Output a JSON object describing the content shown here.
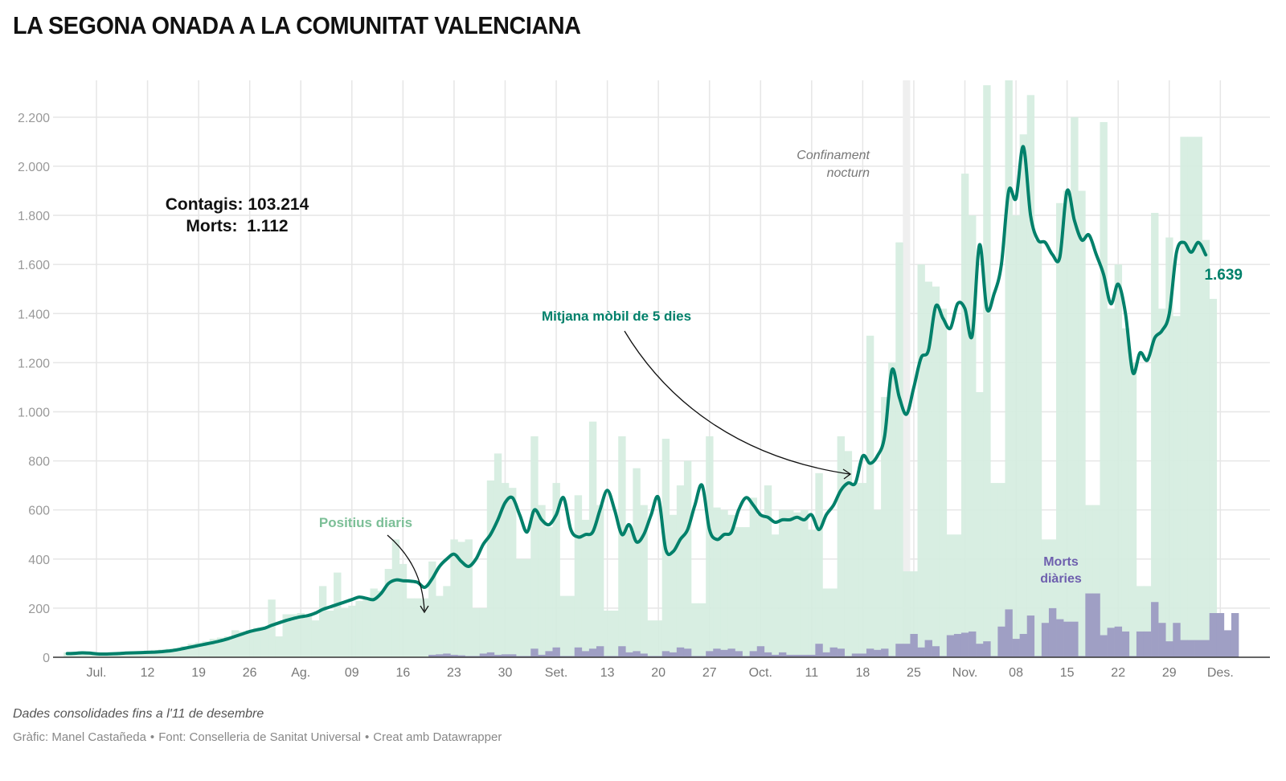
{
  "title": "LA SEGONA ONADA A LA COMUNITAT VALENCIANA",
  "footer": {
    "note": "Dades consolidades fins a l'11 de desembre",
    "credit_graphic": "Gràfic: Manel Castañeda",
    "credit_source": "Font: Conselleria de Sanitat Universal",
    "credit_tool": "Creat amb Datawrapper",
    "separator": "•"
  },
  "colors": {
    "positives_bar": "#d5ede0",
    "moving_avg_line": "#00806a",
    "deaths_bar": "#9f9fc4",
    "positives_label": "#7cbf97",
    "deaths_label": "#6e5fae",
    "curfew_band": "#efefef",
    "grid": "#e6e6e6",
    "axis_text": "#999999"
  },
  "chart_data": {
    "type": "bar",
    "title": "LA SEGONA ONADA A LA COMUNITAT VALENCIANA",
    "xlabel": "",
    "ylabel": "",
    "ylim": [
      0,
      2350
    ],
    "grid": true,
    "start_date": "2020-07-01",
    "end_date": "2020-12-11",
    "yticks": [
      0,
      200,
      400,
      600,
      800,
      1000,
      1200,
      1400,
      1600,
      1800,
      2000,
      2200
    ],
    "ytick_labels": [
      "0",
      "200",
      "400",
      "600",
      "800",
      "1.000",
      "1.200",
      "1.400",
      "1.600",
      "1.800",
      "2.000",
      "2.200"
    ],
    "xticks": [
      {
        "day": 4,
        "label": "Jul."
      },
      {
        "day": 11,
        "label": "12"
      },
      {
        "day": 18,
        "label": "19"
      },
      {
        "day": 25,
        "label": "26"
      },
      {
        "day": 32,
        "label": "Ag."
      },
      {
        "day": 39,
        "label": "09"
      },
      {
        "day": 46,
        "label": "16"
      },
      {
        "day": 53,
        "label": "23"
      },
      {
        "day": 60,
        "label": "30"
      },
      {
        "day": 67,
        "label": "Set."
      },
      {
        "day": 74,
        "label": "13"
      },
      {
        "day": 81,
        "label": "20"
      },
      {
        "day": 88,
        "label": "27"
      },
      {
        "day": 95,
        "label": "Oct."
      },
      {
        "day": 102,
        "label": "11"
      },
      {
        "day": 109,
        "label": "18"
      },
      {
        "day": 116,
        "label": "25"
      },
      {
        "day": 123,
        "label": "Nov."
      },
      {
        "day": 130,
        "label": "08"
      },
      {
        "day": 137,
        "label": "15"
      },
      {
        "day": 144,
        "label": "22"
      },
      {
        "day": 151,
        "label": "29"
      },
      {
        "day": 158,
        "label": "Des."
      }
    ],
    "series": [
      {
        "name": "Positius diaris",
        "type": "bar",
        "values": [
          20,
          22,
          25,
          18,
          15,
          14,
          16,
          18,
          20,
          22,
          25,
          28,
          30,
          32,
          35,
          38,
          45,
          55,
          60,
          65,
          75,
          80,
          85,
          110,
          105,
          110,
          120,
          125,
          235,
          85,
          175,
          175,
          180,
          170,
          150,
          290,
          190,
          345,
          200,
          210,
          230,
          240,
          280,
          270,
          360,
          480,
          380,
          240,
          240,
          240,
          390,
          250,
          290,
          480,
          470,
          480,
          200,
          200,
          720,
          830,
          710,
          690,
          400,
          400,
          900,
          620,
          530,
          710,
          250,
          250,
          660,
          560,
          960,
          620,
          190,
          190,
          900,
          520,
          770,
          620,
          150,
          150,
          890,
          580,
          700,
          800,
          220,
          220,
          900,
          610,
          600,
          580,
          530,
          530,
          650,
          580,
          700,
          500,
          600,
          600,
          590,
          600,
          520,
          750,
          280,
          280,
          900,
          840,
          710,
          710,
          1310,
          600,
          1060,
          1200,
          1690,
          350,
          350,
          1600,
          1530,
          1510,
          1420,
          500,
          500,
          1970,
          1800,
          1080,
          2330,
          710,
          710,
          2350,
          1800,
          2130,
          2290,
          1700,
          480,
          480,
          1850,
          1900,
          2200,
          1900,
          620,
          620,
          2180,
          1420,
          1600,
          1340,
          1200,
          290,
          290,
          1810,
          1420,
          1710,
          1390,
          2120,
          2120,
          2120,
          1700,
          1460
        ],
        "color": "#d5ede0"
      },
      {
        "name": "Mitjana mòbil de 5 dies",
        "type": "line",
        "values": [
          15,
          16,
          18,
          17,
          14,
          13,
          14,
          15,
          17,
          18,
          19,
          20,
          21,
          23,
          26,
          30,
          36,
          42,
          48,
          54,
          60,
          67,
          75,
          85,
          95,
          105,
          112,
          118,
          130,
          140,
          150,
          158,
          165,
          170,
          180,
          195,
          205,
          215,
          225,
          235,
          245,
          240,
          235,
          260,
          300,
          315,
          312,
          310,
          305,
          285,
          320,
          370,
          400,
          420,
          390,
          370,
          400,
          460,
          500,
          560,
          630,
          650,
          580,
          510,
          600,
          560,
          540,
          580,
          650,
          520,
          490,
          500,
          510,
          600,
          680,
          600,
          500,
          540,
          470,
          500,
          580,
          650,
          440,
          430,
          480,
          520,
          620,
          700,
          520,
          480,
          500,
          510,
          600,
          650,
          620,
          580,
          570,
          550,
          560,
          560,
          570,
          560,
          580,
          520,
          580,
          620,
          680,
          710,
          710,
          820,
          790,
          820,
          900,
          1170,
          1060,
          990,
          1100,
          1220,
          1250,
          1430,
          1380,
          1340,
          1440,
          1420,
          1310,
          1680,
          1420,
          1480,
          1600,
          1900,
          1870,
          2080,
          1800,
          1700,
          1690,
          1640,
          1630,
          1900,
          1780,
          1700,
          1720,
          1640,
          1560,
          1440,
          1520,
          1400,
          1160,
          1240,
          1210,
          1300,
          1330,
          1400,
          1650,
          1690,
          1650,
          1690,
          1639
        ],
        "color": "#00806a",
        "end_label": "1.639"
      },
      {
        "name": "Morts diàries",
        "type": "bar",
        "values": [
          0,
          0,
          0,
          0,
          0,
          0,
          0,
          0,
          0,
          0,
          0,
          0,
          0,
          0,
          0,
          0,
          0,
          0,
          0,
          0,
          0,
          0,
          0,
          0,
          0,
          0,
          0,
          0,
          0,
          0,
          0,
          0,
          0,
          0,
          0,
          0,
          0,
          0,
          0,
          0,
          0,
          0,
          0,
          0,
          0,
          0,
          0,
          0,
          0,
          0,
          10,
          12,
          15,
          10,
          8,
          5,
          5,
          15,
          20,
          10,
          12,
          12,
          5,
          5,
          35,
          10,
          25,
          40,
          5,
          5,
          40,
          25,
          35,
          45,
          5,
          5,
          45,
          20,
          25,
          15,
          5,
          5,
          25,
          20,
          40,
          35,
          5,
          5,
          25,
          35,
          30,
          35,
          25,
          5,
          25,
          45,
          20,
          10,
          20,
          10,
          10,
          10,
          10,
          55,
          20,
          40,
          35,
          5,
          15,
          15,
          35,
          30,
          35,
          5,
          55,
          55,
          95,
          40,
          70,
          45,
          5,
          90,
          95,
          100,
          105,
          55,
          65,
          5,
          125,
          195,
          75,
          95,
          170,
          5,
          140,
          200,
          155,
          145,
          145,
          5,
          260,
          260,
          90,
          120,
          125,
          105,
          5,
          105,
          105,
          225,
          140,
          65,
          140,
          70,
          70,
          70,
          70,
          180,
          180,
          110,
          180
        ],
        "color": "#9f9fc4"
      }
    ],
    "annotations": [
      {
        "text": "Contagis: 103.214",
        "type": "summary"
      },
      {
        "text": "Morts:  1.112",
        "type": "summary"
      },
      {
        "text": "Positius diaris",
        "type": "series-label",
        "series": "Positius diaris"
      },
      {
        "text": "Mitjana mòbil de 5 dies",
        "type": "series-label",
        "series": "Mitjana mòbil de 5 dies"
      },
      {
        "text": "Morts",
        "type": "series-label",
        "series": "Morts diàries"
      },
      {
        "text": "diàries",
        "type": "series-label",
        "series": "Morts diàries"
      },
      {
        "text": "Confinament",
        "type": "event"
      },
      {
        "text": "nocturn",
        "type": "event"
      }
    ],
    "event_band": {
      "day": 115,
      "label": "Confinament nocturn"
    },
    "summary": {
      "contagis": "103.214",
      "morts": "1.112"
    },
    "legend": "none (inline labels)"
  }
}
